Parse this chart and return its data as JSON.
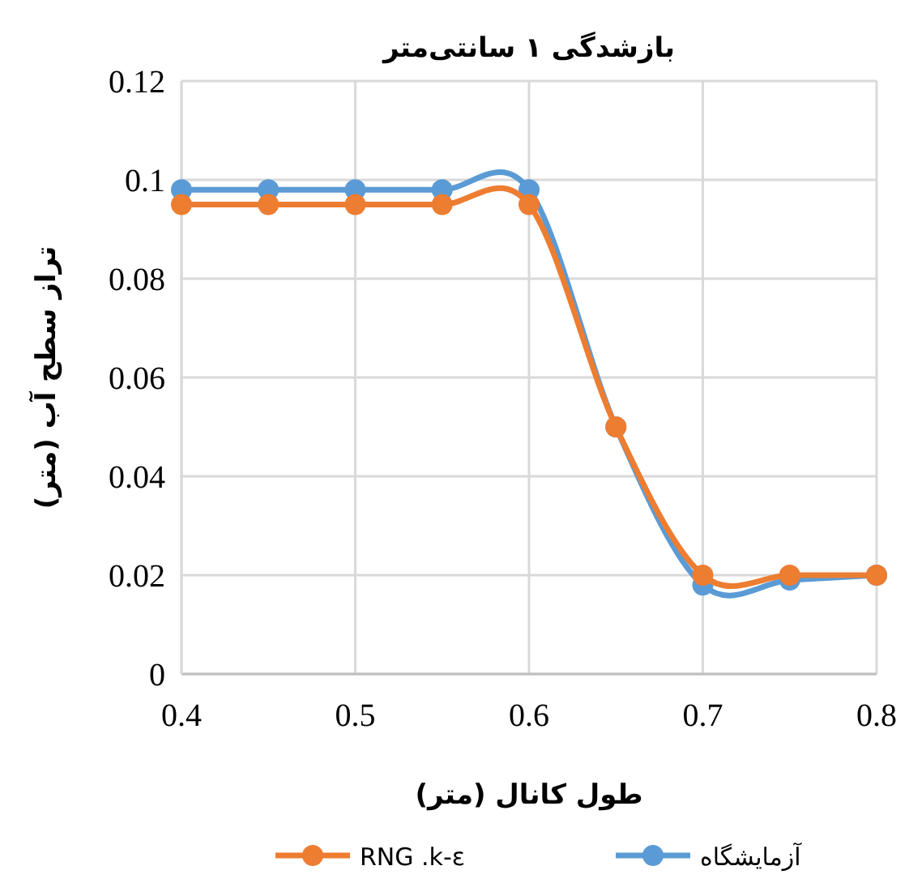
{
  "chart_data": {
    "type": "line",
    "title": "بازشدگی ۱ سانتی‌متر",
    "xlabel": "طول کانال (متر)",
    "ylabel": "تراز سطح آب (متر)",
    "x": [
      0.4,
      0.45,
      0.5,
      0.55,
      0.6,
      0.65,
      0.7,
      0.75,
      0.8
    ],
    "series": [
      {
        "name": "آزمایشگاه",
        "color": "#5b9bd5",
        "values": [
          0.098,
          0.098,
          0.098,
          0.098,
          0.098,
          0.05,
          0.018,
          0.019,
          0.02
        ]
      },
      {
        "name": "RNG .k-ε",
        "color": "#ed7d31",
        "values": [
          0.095,
          0.095,
          0.095,
          0.095,
          0.095,
          0.05,
          0.02,
          0.02,
          0.02
        ]
      }
    ],
    "xlim": [
      0.4,
      0.8
    ],
    "xticks": [
      0.4,
      0.5,
      0.6,
      0.7,
      0.8
    ],
    "ylim": [
      0,
      0.12
    ],
    "yticks": [
      0,
      0.02,
      0.04,
      0.06,
      0.08,
      0.1,
      0.12
    ],
    "grid": true,
    "legend": "bottom",
    "marker": "circle",
    "line_style": "solid"
  }
}
